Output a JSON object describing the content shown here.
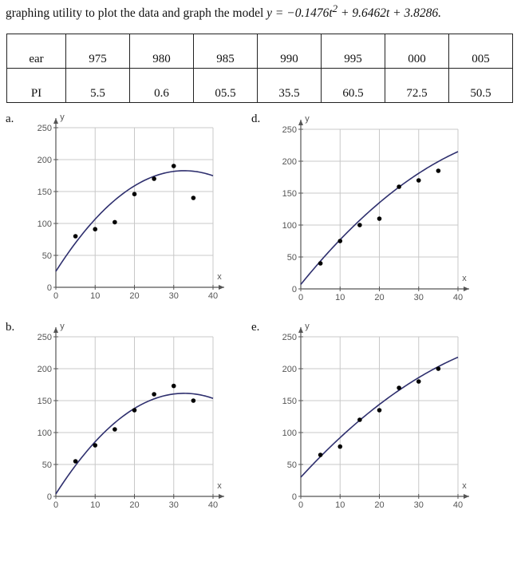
{
  "problem": {
    "intro_text": "graphing utility to plot the data and graph the model",
    "model_lhs": "y = ",
    "model_term1": "−0.1476t",
    "model_exp": "2",
    "model_rest": " + 9.6462t + 3.8286."
  },
  "table": {
    "rows": [
      {
        "label": "ear",
        "cells": [
          "975",
          "980",
          "985",
          "990",
          "995",
          "000",
          "005"
        ]
      },
      {
        "label": "PI",
        "cells": [
          "5.5",
          "0.6",
          "05.5",
          "35.5",
          "60.5",
          "72.5",
          "50.5"
        ]
      }
    ]
  },
  "colors": {
    "curve": "#2e2f6e",
    "point": "#000000",
    "grid": "#c8c8c8",
    "axis": "#555555"
  },
  "chart_data": [
    {
      "type": "scatter",
      "label": "a.",
      "xlabel": "x",
      "ylabel": "y",
      "xlim": [
        0,
        40
      ],
      "ylim": [
        0,
        250
      ],
      "xticks": [
        "0",
        "10",
        "20",
        "30",
        "40"
      ],
      "yticks": [
        "0",
        "50",
        "100",
        "150",
        "200",
        "250"
      ],
      "points": [
        [
          5,
          80
        ],
        [
          10,
          91
        ],
        [
          15,
          102
        ],
        [
          20,
          146
        ],
        [
          25,
          170
        ],
        [
          30,
          190
        ],
        [
          35,
          140
        ]
      ],
      "curve_coeffs": [
        -0.1476,
        9.6462,
        25
      ],
      "curve_x": [
        0,
        40
      ],
      "grid": true
    },
    {
      "type": "scatter",
      "label": "b.",
      "xlabel": "x",
      "ylabel": "y",
      "xlim": [
        0,
        40
      ],
      "ylim": [
        0,
        250
      ],
      "xticks": [
        "0",
        "10",
        "20",
        "30",
        "40"
      ],
      "yticks": [
        "0",
        "50",
        "100",
        "150",
        "200",
        "250"
      ],
      "points": [
        [
          5,
          55
        ],
        [
          10,
          80
        ],
        [
          15,
          105
        ],
        [
          20,
          135
        ],
        [
          25,
          160
        ],
        [
          30,
          173
        ],
        [
          35,
          150
        ]
      ],
      "curve_coeffs": [
        -0.1476,
        9.6462,
        3.8286
      ],
      "curve_x": [
        0,
        40
      ],
      "grid": true
    },
    {
      "type": "scatter",
      "label": "d.",
      "xlabel": "x",
      "ylabel": "y",
      "xlim": [
        0,
        40
      ],
      "ylim": [
        0,
        250
      ],
      "xticks": [
        "0",
        "10",
        "20",
        "30",
        "40"
      ],
      "yticks": [
        "0",
        "50",
        "100",
        "150",
        "200",
        "250"
      ],
      "points": [
        [
          5,
          40
        ],
        [
          10,
          75
        ],
        [
          15,
          100
        ],
        [
          20,
          110
        ],
        [
          25,
          160
        ],
        [
          30,
          170
        ],
        [
          35,
          185
        ]
      ],
      "curve_coeffs": [
        -0.06,
        7.6,
        7
      ],
      "curve_x": [
        0,
        40
      ],
      "grid": true
    },
    {
      "type": "scatter",
      "label": "e.",
      "xlabel": "x",
      "ylabel": "y",
      "xlim": [
        0,
        40
      ],
      "ylim": [
        0,
        250
      ],
      "xticks": [
        "0",
        "10",
        "20",
        "30",
        "40"
      ],
      "yticks": [
        "0",
        "50",
        "100",
        "150",
        "200",
        "250"
      ],
      "points": [
        [
          5,
          65
        ],
        [
          10,
          78
        ],
        [
          15,
          120
        ],
        [
          20,
          135
        ],
        [
          25,
          170
        ],
        [
          30,
          180
        ],
        [
          35,
          200
        ]
      ],
      "curve_coeffs": [
        -0.05,
        6.7,
        30
      ],
      "curve_x": [
        0,
        40
      ],
      "grid": true
    }
  ]
}
